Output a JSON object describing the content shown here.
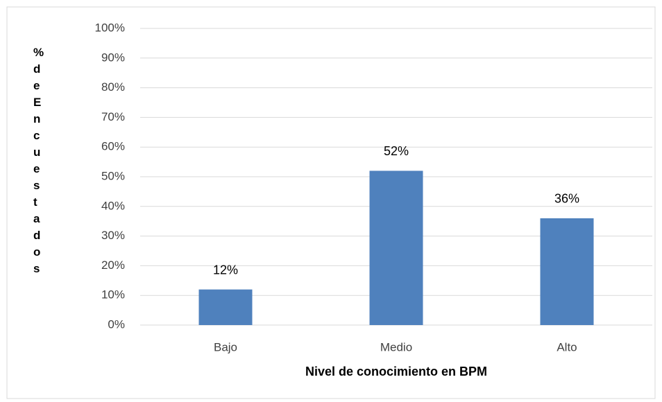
{
  "chart_data": {
    "type": "bar",
    "categories": [
      "Bajo",
      "Medio",
      "Alto"
    ],
    "values": [
      12,
      52,
      36
    ],
    "value_labels": [
      "12%",
      "52%",
      "36%"
    ],
    "color": "#4f81bd",
    "x_label": "Nivel de conocimiento en BPM",
    "y_label": "% de Encuestados",
    "ylim": [
      0,
      100
    ],
    "yticks": [
      {
        "value": 0,
        "label": "0%"
      },
      {
        "value": 10,
        "label": "10%"
      },
      {
        "value": 20,
        "label": "20%"
      },
      {
        "value": 30,
        "label": "30%"
      },
      {
        "value": 40,
        "label": "40%"
      },
      {
        "value": 50,
        "label": "50%"
      },
      {
        "value": 60,
        "label": "60%"
      },
      {
        "value": 70,
        "label": "70%"
      },
      {
        "value": 80,
        "label": "80%"
      },
      {
        "value": 90,
        "label": "90%"
      },
      {
        "value": 100,
        "label": "100%"
      }
    ],
    "grid": true
  }
}
